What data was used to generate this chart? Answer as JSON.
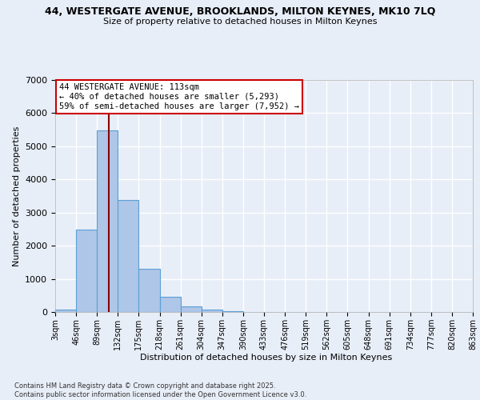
{
  "title_line1": "44, WESTERGATE AVENUE, BROOKLANDS, MILTON KEYNES, MK10 7LQ",
  "title_line2": "Size of property relative to detached houses in Milton Keynes",
  "xlabel": "Distribution of detached houses by size in Milton Keynes",
  "ylabel": "Number of detached properties",
  "bin_edges": [
    3,
    46,
    89,
    132,
    175,
    218,
    261,
    304,
    347,
    390,
    433,
    476,
    519,
    562,
    605,
    648,
    691,
    734,
    777,
    820,
    863
  ],
  "bin_labels": [
    "3sqm",
    "46sqm",
    "89sqm",
    "132sqm",
    "175sqm",
    "218sqm",
    "261sqm",
    "304sqm",
    "347sqm",
    "390sqm",
    "433sqm",
    "476sqm",
    "519sqm",
    "562sqm",
    "605sqm",
    "648sqm",
    "691sqm",
    "734sqm",
    "777sqm",
    "820sqm",
    "863sqm"
  ],
  "counts": [
    80,
    2490,
    5490,
    3370,
    1310,
    460,
    175,
    80,
    30,
    10,
    5,
    3,
    2,
    1,
    1,
    0,
    0,
    0,
    0,
    0
  ],
  "bar_color": "#aec6e8",
  "bar_edge_color": "#5a9fd4",
  "vline_x": 113,
  "vline_color": "#8b0000",
  "annotation_text": "44 WESTERGATE AVENUE: 113sqm\n← 40% of detached houses are smaller (5,293)\n59% of semi-detached houses are larger (7,952) →",
  "annotation_box_color": "#ffffff",
  "annotation_box_edge": "#cc0000",
  "ylim": [
    0,
    7000
  ],
  "yticks": [
    0,
    1000,
    2000,
    3000,
    4000,
    5000,
    6000,
    7000
  ],
  "bg_color": "#e8eef8",
  "grid_color": "#ffffff",
  "footer_line1": "Contains HM Land Registry data © Crown copyright and database right 2025.",
  "footer_line2": "Contains public sector information licensed under the Open Government Licence v3.0."
}
